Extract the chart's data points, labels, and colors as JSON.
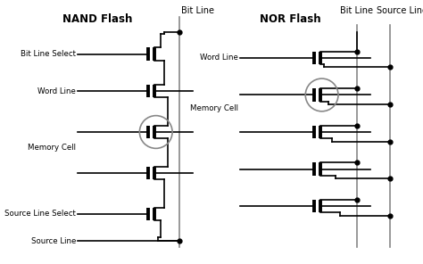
{
  "bg_color": "#ffffff",
  "line_color": "#000000",
  "gray_color": "#888888",
  "lw_thin": 1.2,
  "lw_thick": 2.8,
  "lw_bus": 1.2,
  "nand_title": "NAND Flash",
  "nor_title": "NOR Flash",
  "label_nand_bit_line": "Bit Line",
  "label_nand_bit_select": "Bit Line Select",
  "label_nand_word_line": "Word Line",
  "label_nand_memory_cell": "Memory Cell",
  "label_nand_source_select": "Source Line Select",
  "label_nand_source_line": "Source Line",
  "label_nor_bit_line": "Bit Line",
  "label_nor_source_line": "Source Line",
  "label_nor_word_line": "Word Line",
  "label_nor_memory_cell": "Memory Cell",
  "figsize": [
    4.74,
    2.96
  ],
  "dpi": 100
}
